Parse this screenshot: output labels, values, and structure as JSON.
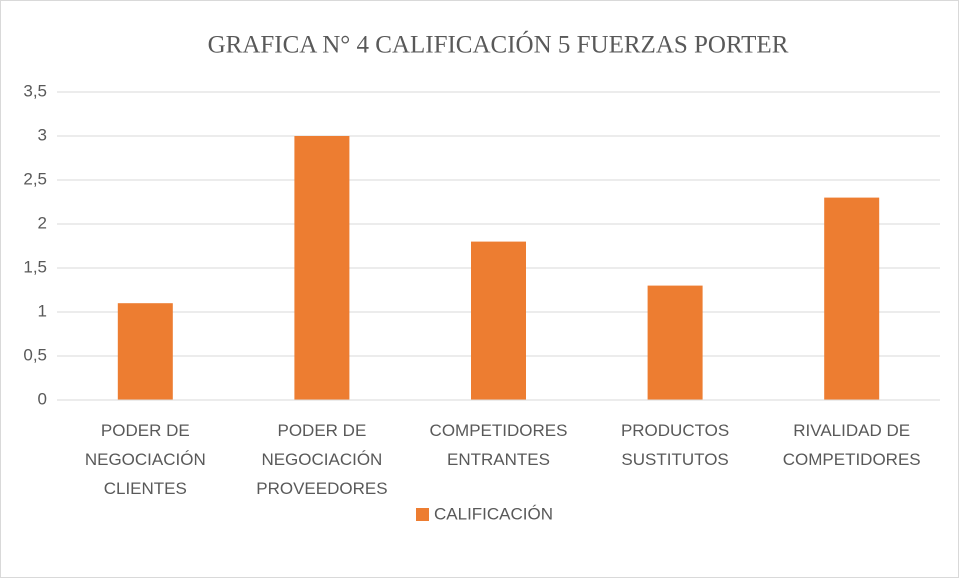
{
  "chart_data": {
    "type": "bar",
    "title": "GRAFICA N° 4 CALIFICACIÓN 5 FUERZAS PORTER",
    "categories": [
      "PODER DE NEGOCIACIÓN CLIENTES",
      "PODER DE NEGOCIACIÓN PROVEEDORES",
      "COMPETIDORES ENTRANTES",
      "PRODUCTOS SUSTITUTOS",
      "RIVALIDAD DE COMPETIDORES"
    ],
    "series": [
      {
        "name": "CALIFICACIÓN",
        "color": "#ed7d31",
        "values": [
          1.1,
          3,
          1.8,
          1.3,
          2.3
        ]
      }
    ],
    "ylim": [
      0,
      3.5
    ],
    "yticks": [
      0,
      {
        "value": 0.5,
        "label": "0,5"
      },
      1,
      {
        "value": 1.5,
        "label": "1,5"
      },
      2,
      {
        "value": 2.5,
        "label": "2,5"
      },
      3,
      {
        "value": 3.5,
        "label": "3,5"
      }
    ],
    "grid": true,
    "legend": "bottom"
  }
}
